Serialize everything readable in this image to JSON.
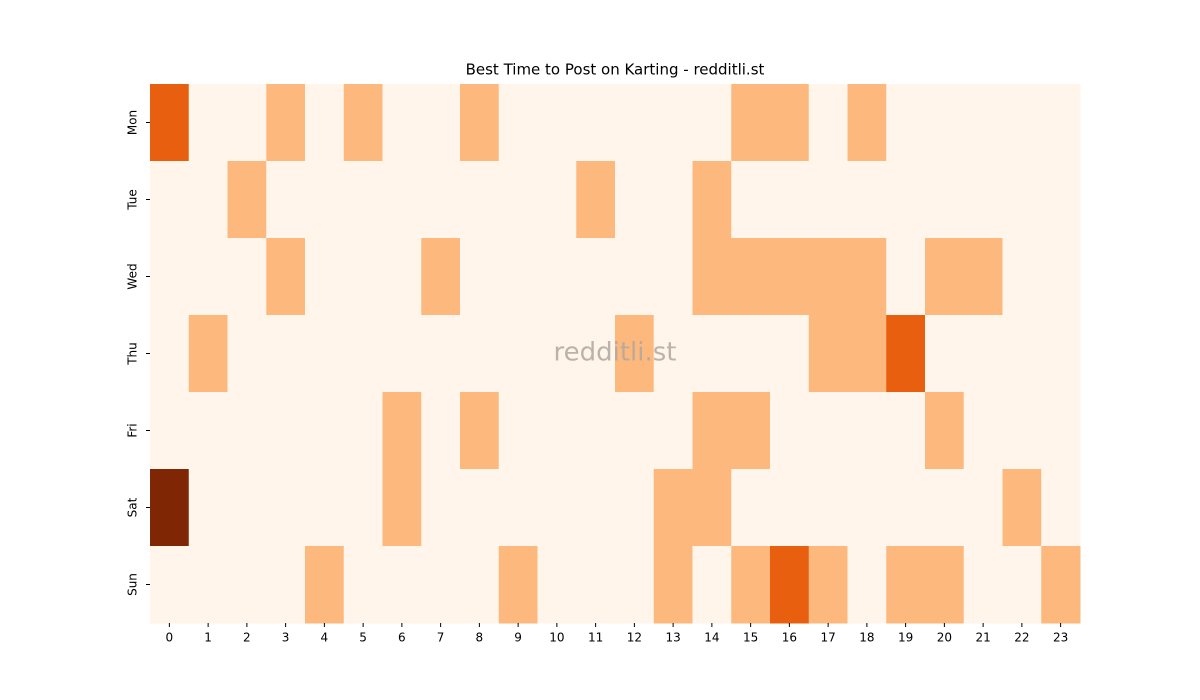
{
  "chart_data": {
    "type": "heatmap",
    "title": "Best Time to Post on Karting - redditli.st",
    "watermark": "redditli.st",
    "x": [
      0,
      1,
      2,
      3,
      4,
      5,
      6,
      7,
      8,
      9,
      10,
      11,
      12,
      13,
      14,
      15,
      16,
      17,
      18,
      19,
      20,
      21,
      22,
      23
    ],
    "y": [
      "Mon",
      "Tue",
      "Wed",
      "Thu",
      "Fri",
      "Sat",
      "Sun"
    ],
    "values": [
      [
        2,
        0,
        0,
        1,
        0,
        1,
        0,
        0,
        1,
        0,
        0,
        0,
        0,
        0,
        0,
        1,
        1,
        0,
        1,
        0,
        0,
        0,
        0,
        0
      ],
      [
        0,
        0,
        1,
        0,
        0,
        0,
        0,
        0,
        0,
        0,
        0,
        1,
        0,
        0,
        1,
        0,
        0,
        0,
        0,
        0,
        0,
        0,
        0,
        0
      ],
      [
        0,
        0,
        0,
        1,
        0,
        0,
        0,
        1,
        0,
        0,
        0,
        0,
        0,
        0,
        1,
        1,
        1,
        1,
        1,
        0,
        1,
        1,
        0,
        0
      ],
      [
        0,
        1,
        0,
        0,
        0,
        0,
        0,
        0,
        0,
        0,
        0,
        0,
        1,
        0,
        0,
        0,
        0,
        1,
        1,
        2,
        0,
        0,
        0,
        0
      ],
      [
        0,
        0,
        0,
        0,
        0,
        0,
        1,
        0,
        1,
        0,
        0,
        0,
        0,
        0,
        1,
        1,
        0,
        0,
        0,
        0,
        1,
        0,
        0,
        0
      ],
      [
        3,
        0,
        0,
        0,
        0,
        0,
        1,
        0,
        0,
        0,
        0,
        0,
        0,
        1,
        1,
        0,
        0,
        0,
        0,
        0,
        0,
        0,
        1,
        0
      ],
      [
        0,
        0,
        0,
        0,
        1,
        0,
        0,
        0,
        0,
        1,
        0,
        0,
        0,
        1,
        0,
        1,
        2,
        1,
        0,
        1,
        1,
        0,
        0,
        1
      ]
    ],
    "zlim": [
      0,
      3
    ],
    "color_scale": [
      "#fff5eb",
      "#fdb97d",
      "#e8600f",
      "#7f2704"
    ]
  }
}
